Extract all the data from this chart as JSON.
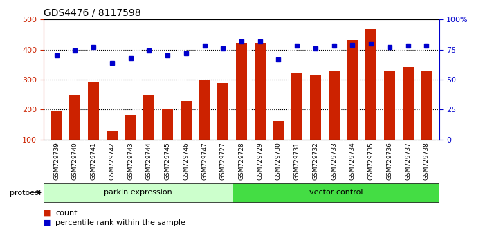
{
  "title": "GDS4476 / 8117598",
  "samples": [
    "GSM729739",
    "GSM729740",
    "GSM729741",
    "GSM729742",
    "GSM729743",
    "GSM729744",
    "GSM729745",
    "GSM729746",
    "GSM729747",
    "GSM729727",
    "GSM729728",
    "GSM729729",
    "GSM729730",
    "GSM729731",
    "GSM729732",
    "GSM729733",
    "GSM729734",
    "GSM729735",
    "GSM729736",
    "GSM729737",
    "GSM729738"
  ],
  "counts": [
    197,
    250,
    290,
    130,
    183,
    250,
    203,
    228,
    297,
    288,
    422,
    422,
    162,
    323,
    314,
    330,
    432,
    469,
    327,
    342,
    330
  ],
  "percentiles": [
    70,
    74,
    77,
    64,
    68,
    74,
    70,
    72,
    78,
    76,
    82,
    82,
    67,
    78,
    76,
    78,
    79,
    80,
    77,
    78,
    78
  ],
  "parkin_count": 10,
  "vector_count": 11,
  "bar_color": "#cc2200",
  "dot_color": "#0000cc",
  "ylim_left": [
    100,
    500
  ],
  "ylim_right": [
    0,
    100
  ],
  "yticks_left": [
    100,
    200,
    300,
    400,
    500
  ],
  "yticks_right": [
    0,
    25,
    50,
    75,
    100
  ],
  "grid_values": [
    200,
    300,
    400
  ],
  "parkin_color": "#ccffcc",
  "vector_color": "#44dd44",
  "protocol_label": "protocol",
  "parkin_label": "parkin expression",
  "vector_label": "vector control",
  "legend_count_label": "count",
  "legend_pct_label": "percentile rank within the sample",
  "bar_width": 0.6,
  "xlabel_fontsize": 6.5,
  "title_fontsize": 10,
  "tick_fontsize": 8
}
